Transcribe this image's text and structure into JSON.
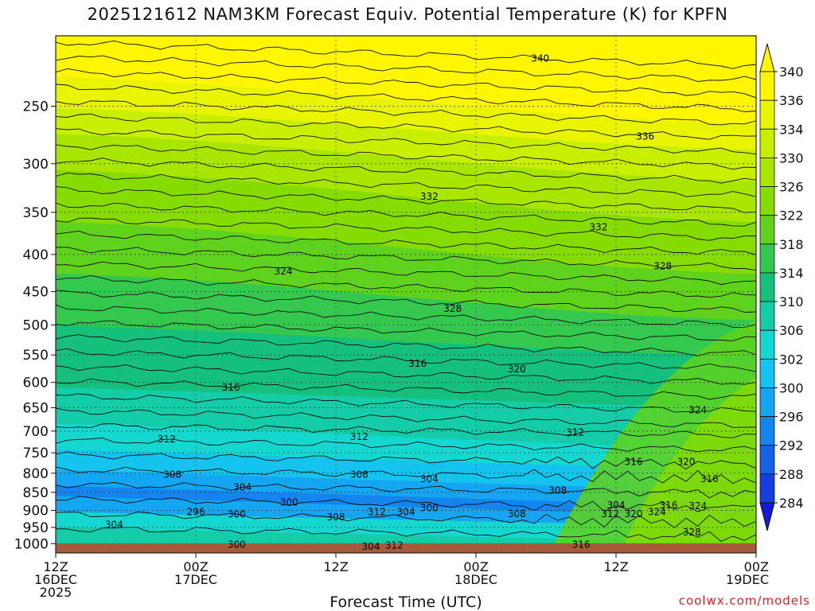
{
  "chart_data": {
    "type": "heatmap",
    "title": "2025121612 NAM3KM Forecast Equiv. Potential Temperature (K) for KPFN",
    "xlabel": "Forecast Time (UTC)",
    "ylabel": "",
    "credit": "coolwx.com/models",
    "x_ticks": [
      {
        "hours": 0,
        "lines": [
          "12Z",
          "16DEC",
          "2025"
        ]
      },
      {
        "hours": 12,
        "lines": [
          "00Z",
          "17DEC"
        ]
      },
      {
        "hours": 24,
        "lines": [
          "12Z"
        ]
      },
      {
        "hours": 36,
        "lines": [
          "00Z",
          "18DEC"
        ]
      },
      {
        "hours": 48,
        "lines": [
          "12Z"
        ]
      },
      {
        "hours": 60,
        "lines": [
          "00Z",
          "19DEC"
        ]
      }
    ],
    "xlim_hours": [
      0,
      60
    ],
    "y_axis": "pressure (mb), log scale, inverted",
    "ylim": [
      1030,
      200
    ],
    "y_ticks": [
      250,
      300,
      350,
      400,
      450,
      500,
      550,
      600,
      650,
      700,
      750,
      800,
      850,
      900,
      950,
      1000
    ],
    "colorbar": {
      "units": "K",
      "labels": [
        340,
        336,
        334,
        330,
        326,
        322,
        318,
        314,
        310,
        306,
        302,
        300,
        296,
        292,
        288,
        284
      ],
      "colors": [
        "#fff600",
        "#e8f400",
        "#c8ee00",
        "#a8e600",
        "#86dc00",
        "#5fd21e",
        "#34c84e",
        "#14c07c",
        "#14cca8",
        "#14d8d0",
        "#14c4ee",
        "#14a6f2",
        "#1484ee",
        "#1462e8",
        "#143ee0",
        "#141ad8"
      ]
    },
    "contour_labels": [
      {
        "text": "340",
        "hours": 41.5,
        "p": 215
      },
      {
        "text": "336",
        "hours": 50.5,
        "p": 275
      },
      {
        "text": "332",
        "hours": 32,
        "p": 333
      },
      {
        "text": "332",
        "hours": 46.5,
        "p": 367
      },
      {
        "text": "328",
        "hours": 52,
        "p": 415
      },
      {
        "text": "324",
        "hours": 19.5,
        "p": 422
      },
      {
        "text": "328",
        "hours": 34,
        "p": 475
      },
      {
        "text": "316",
        "hours": 31,
        "p": 565
      },
      {
        "text": "320",
        "hours": 39.5,
        "p": 575
      },
      {
        "text": "316",
        "hours": 15,
        "p": 610
      },
      {
        "text": "324",
        "hours": 55,
        "p": 655
      },
      {
        "text": "312",
        "hours": 9.5,
        "p": 718
      },
      {
        "text": "312",
        "hours": 26,
        "p": 713
      },
      {
        "text": "312",
        "hours": 44.5,
        "p": 703
      },
      {
        "text": "316",
        "hours": 49.5,
        "p": 772
      },
      {
        "text": "320",
        "hours": 54,
        "p": 772
      },
      {
        "text": "308",
        "hours": 10,
        "p": 803
      },
      {
        "text": "308",
        "hours": 26,
        "p": 803
      },
      {
        "text": "304",
        "hours": 32,
        "p": 815
      },
      {
        "text": "316",
        "hours": 56,
        "p": 815
      },
      {
        "text": "304",
        "hours": 16,
        "p": 837
      },
      {
        "text": "308",
        "hours": 43,
        "p": 845
      },
      {
        "text": "300",
        "hours": 20,
        "p": 878
      },
      {
        "text": "300",
        "hours": 32,
        "p": 893
      },
      {
        "text": "304",
        "hours": 48,
        "p": 885
      },
      {
        "text": "316",
        "hours": 52.5,
        "p": 885
      },
      {
        "text": "324",
        "hours": 55,
        "p": 888
      },
      {
        "text": "296",
        "hours": 12,
        "p": 905
      },
      {
        "text": "300",
        "hours": 15.5,
        "p": 912
      },
      {
        "text": "312",
        "hours": 27.5,
        "p": 905
      },
      {
        "text": "304",
        "hours": 30,
        "p": 905
      },
      {
        "text": "308",
        "hours": 24,
        "p": 920
      },
      {
        "text": "308",
        "hours": 39.5,
        "p": 910
      },
      {
        "text": "312",
        "hours": 47.5,
        "p": 910
      },
      {
        "text": "320",
        "hours": 49.5,
        "p": 910
      },
      {
        "text": "324",
        "hours": 51.5,
        "p": 905
      },
      {
        "text": "304",
        "hours": 5,
        "p": 942
      },
      {
        "text": "328",
        "hours": 54.5,
        "p": 965
      },
      {
        "text": "300",
        "hours": 15.5,
        "p": 1003
      },
      {
        "text": "304",
        "hours": 27,
        "p": 1010
      },
      {
        "text": "312",
        "hours": 29,
        "p": 1005
      },
      {
        "text": "316",
        "hours": 45,
        "p": 1003
      }
    ]
  }
}
